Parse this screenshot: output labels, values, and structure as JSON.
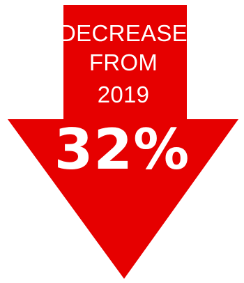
{
  "graphic": {
    "caption_lines": [
      "DECREASE",
      "FROM",
      "2019"
    ],
    "value": "32%",
    "arrow_color": "#e60000",
    "text_color": "#ffffff",
    "arrow_direction": "down"
  }
}
